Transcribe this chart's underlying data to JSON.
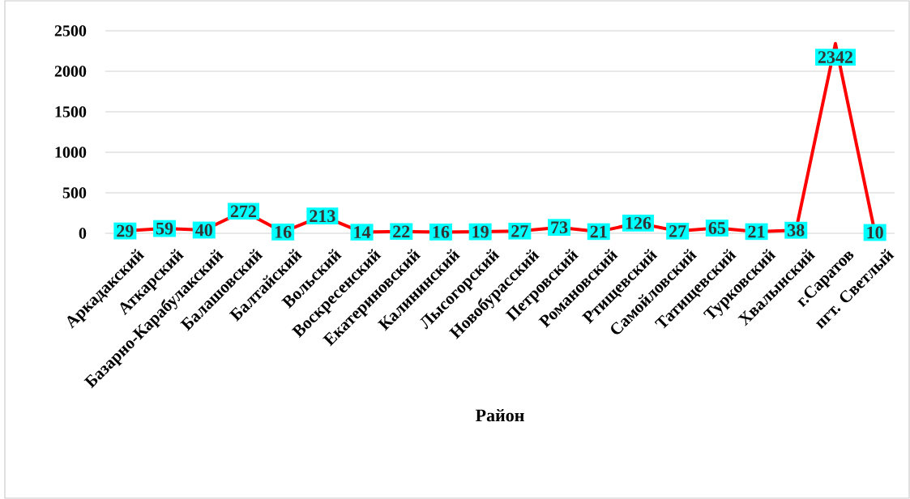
{
  "chart_data": {
    "type": "line",
    "xlabel": "Район",
    "categories": [
      "Аркадакский",
      "Аткарский",
      "Базарно-Карабулакский",
      "Балашовский",
      "Балтайский",
      "Вольский",
      "Воскресенский",
      "Екатериновский",
      "Калининский",
      "Лысогорский",
      "Новобурасский",
      "Петровский",
      "Романовский",
      "Ртищевский",
      "Самойловский",
      "Татищевский",
      "Турковский",
      "Хвалынский",
      "г.Саратов",
      "пгт. Светлый"
    ],
    "values": [
      29,
      59,
      40,
      272,
      16,
      213,
      14,
      22,
      16,
      19,
      27,
      73,
      21,
      126,
      27,
      65,
      21,
      38,
      2342,
      10
    ],
    "color": "#ff0000",
    "ylim": [
      0,
      2500
    ],
    "yticks": [
      0,
      500,
      1000,
      1500,
      2000,
      2500
    ],
    "grid": "y",
    "data_labels": true,
    "marker": "square"
  }
}
